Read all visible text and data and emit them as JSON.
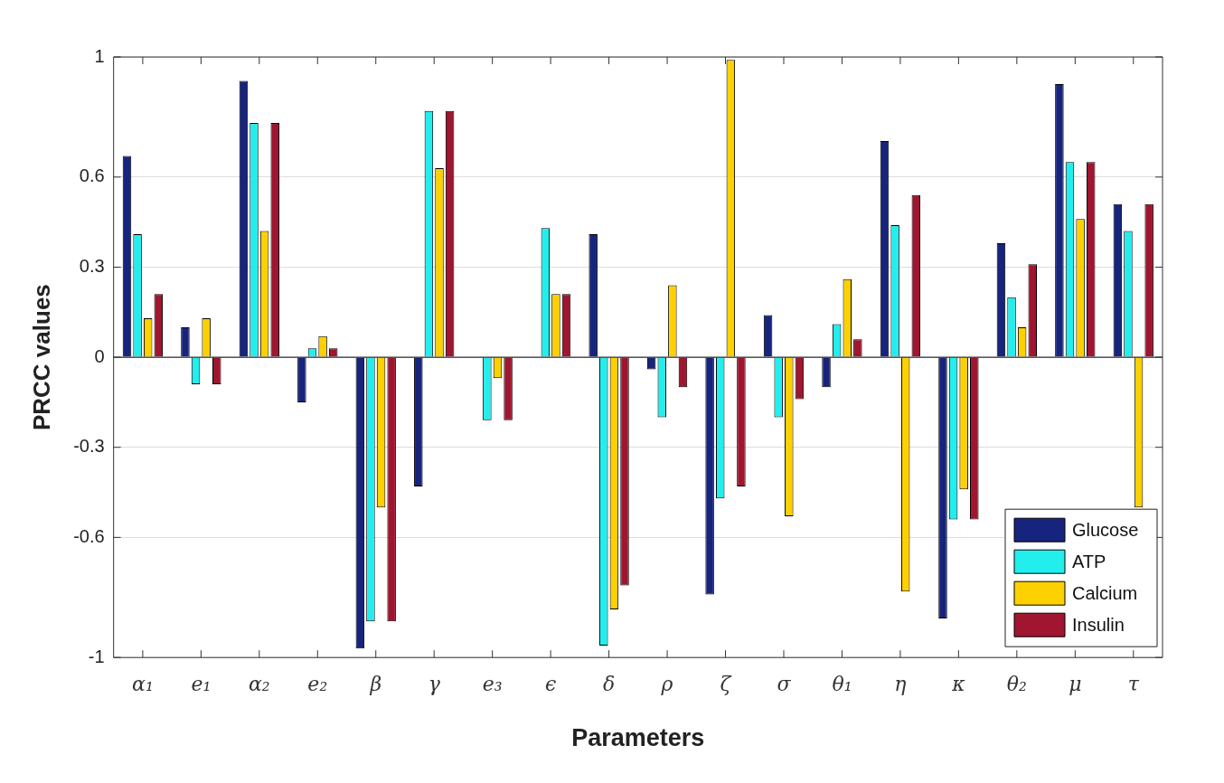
{
  "chart_data": {
    "type": "bar",
    "xlabel": "Parameters",
    "ylabel": "PRCC values",
    "categories": [
      "α₁",
      "e₁",
      "α₂",
      "e₂",
      "β",
      "γ",
      "e₃",
      "ϵ",
      "δ",
      "ρ",
      "ζ",
      "σ",
      "θ₁",
      "η",
      "κ",
      "θ₂",
      "μ",
      "τ"
    ],
    "series": [
      {
        "name": "Glucose",
        "color": "#17247e",
        "values": [
          0.67,
          0.1,
          0.92,
          -0.15,
          -0.97,
          -0.43,
          0,
          0,
          0.41,
          -0.04,
          -0.79,
          0.14,
          -0.1,
          0.72,
          -0.87,
          0.38,
          0.91,
          0.51
        ]
      },
      {
        "name": "ATP",
        "color": "#22eeee",
        "values": [
          0.41,
          -0.09,
          0.78,
          0.03,
          -0.88,
          0.82,
          -0.21,
          0.43,
          -0.96,
          -0.2,
          -0.47,
          -0.2,
          0.11,
          0.44,
          -0.54,
          0.2,
          0.65,
          0.42
        ]
      },
      {
        "name": "Calcium",
        "color": "#fdd000",
        "values": [
          0.13,
          0.13,
          0.42,
          0.07,
          -0.5,
          0.63,
          -0.07,
          0.21,
          -0.84,
          0.24,
          0.99,
          -0.53,
          0.26,
          -0.78,
          -0.44,
          0.1,
          0.46,
          -0.5
        ]
      },
      {
        "name": "Insulin",
        "color": "#a0152f",
        "values": [
          0.21,
          -0.09,
          0.78,
          0.03,
          -0.88,
          0.82,
          -0.21,
          0.21,
          -0.76,
          -0.1,
          -0.43,
          -0.14,
          0.06,
          0.54,
          -0.54,
          0.31,
          0.65,
          0.51
        ]
      }
    ],
    "ylim": [
      -1,
      1
    ],
    "yticks": [
      -1,
      -0.6,
      -0.3,
      0,
      0.3,
      0.6,
      1
    ],
    "grid": "y",
    "legend": "bottom right"
  }
}
